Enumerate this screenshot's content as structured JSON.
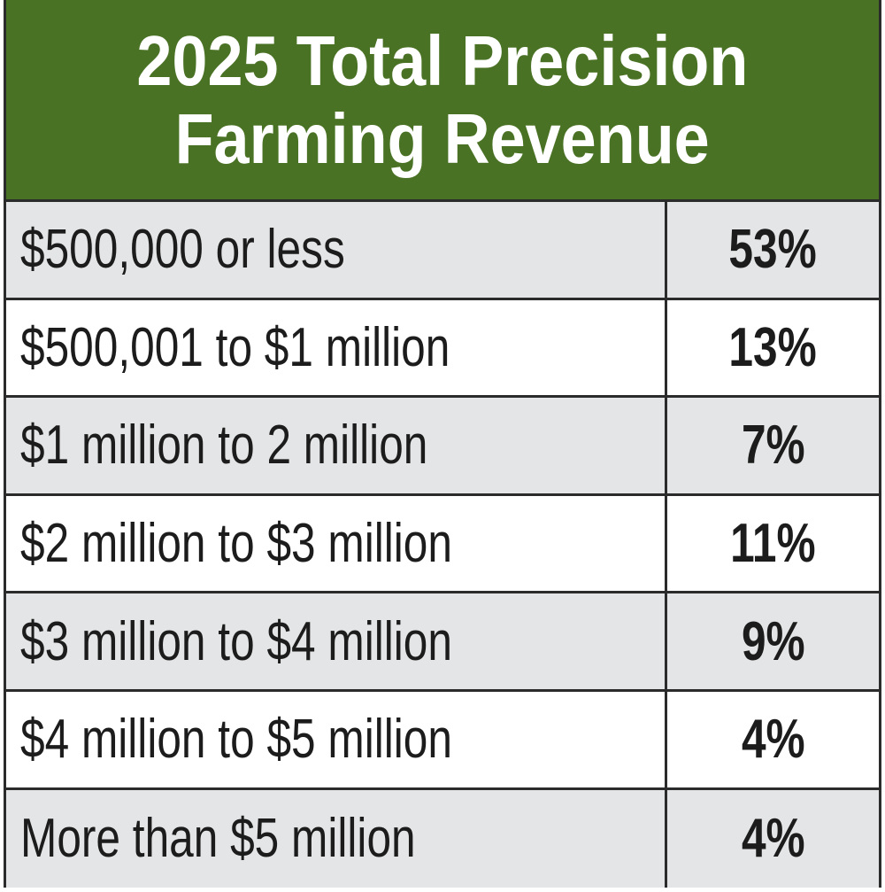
{
  "chart_data": {
    "type": "table",
    "title": [
      "2025 Total Precision",
      "Farming Revenue"
    ],
    "header_color": "#4a7224",
    "rows": [
      {
        "label": "$500,000 or less",
        "value": "53%"
      },
      {
        "label": "$500,001 to $1 million",
        "value": "13%"
      },
      {
        "label": "$1 million to 2 million",
        "value": "7%"
      },
      {
        "label": "$2 million to $3 million",
        "value": "11%"
      },
      {
        "label": "$3 million to $4 million",
        "value": "9%"
      },
      {
        "label": "$4 million to $5 million",
        "value": "4%"
      },
      {
        "label": "More than $5 million",
        "value": "4%"
      }
    ]
  }
}
